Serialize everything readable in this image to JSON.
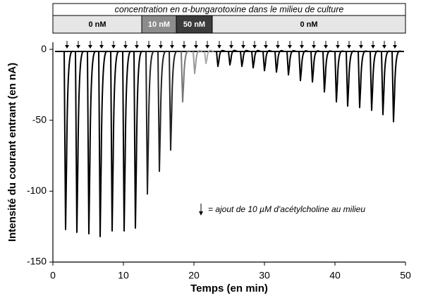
{
  "chart_data": {
    "type": "spike-trace",
    "banner_title": "concentration en α-bungarotoxine dans le milieu de culture",
    "phases": [
      {
        "label": "0 nM",
        "start": 0,
        "end": 12.6,
        "color": "#e6e6e6",
        "text_color": "#000000"
      },
      {
        "label": "10 nM",
        "start": 12.6,
        "end": 17.5,
        "color": "#8c8c8c",
        "text_color": "#ffffff"
      },
      {
        "label": "50 nM",
        "start": 17.5,
        "end": 22.6,
        "color": "#3c3c3c",
        "text_color": "#ffffff"
      },
      {
        "label": "0 nM",
        "start": 22.6,
        "end": 50,
        "color": "#e6e6e6",
        "text_color": "#000000"
      }
    ],
    "x_label": "Temps (en min)",
    "y_label": "Intensité du courant entrant (en nA)",
    "annotation": "= ajout de 10 µM d'acétylcholine au milieu",
    "x": [
      1.8,
      3.4,
      5.1,
      6.7,
      8.4,
      10.1,
      11.7,
      13.4,
      15.1,
      16.7,
      18.4,
      20.1,
      21.7,
      23.4,
      25.1,
      26.8,
      28.4,
      30.0,
      31.7,
      33.4,
      35.1,
      36.8,
      38.5,
      40.2,
      41.8,
      43.5,
      45.2,
      46.8,
      48.3
    ],
    "values": [
      -127,
      -129,
      -130,
      -132,
      -128,
      -128,
      -126,
      -102,
      -86,
      -71,
      -37,
      -17,
      -10,
      -12,
      -11,
      -12,
      -13,
      -15,
      -16,
      -18,
      -22,
      -23,
      -30,
      -37,
      -40,
      -41,
      -43,
      -46,
      -51
    ],
    "colors": [
      "#000",
      "#000",
      "#000",
      "#000",
      "#000",
      "#000",
      "#000",
      "#222",
      "#222",
      "#222",
      "#777",
      "#999",
      "#aaa",
      "#000",
      "#000",
      "#000",
      "#000",
      "#000",
      "#000",
      "#000",
      "#000",
      "#000",
      "#000",
      "#000",
      "#000",
      "#000",
      "#000",
      "#000",
      "#000"
    ],
    "xlim": [
      0,
      50
    ],
    "ylim": [
      -150,
      5
    ],
    "xticks": [
      0,
      10,
      20,
      30,
      40,
      50
    ],
    "yticks": [
      0,
      -50,
      -100,
      -150
    ]
  }
}
